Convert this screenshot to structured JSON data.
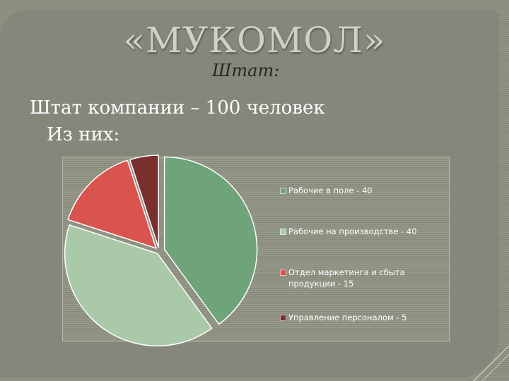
{
  "title": "«МУКОМОЛ»",
  "subtitle": "Штат:",
  "body": {
    "line1": "Штат компании – 100 человек",
    "line2": "Из них:"
  },
  "chart_data": {
    "type": "pie",
    "categories": [
      "Рабочие в поле - 40",
      "Рабочие на производстве - 40",
      "Отдел маркетинга и сбыта продукции - 15",
      "Управление персоналом - 5"
    ],
    "values": [
      40,
      40,
      15,
      5
    ],
    "colors": [
      "#6fa37a",
      "#a9c9a8",
      "#d9534f",
      "#7a2f2f"
    ],
    "legend_position": "right",
    "exploded": true
  }
}
